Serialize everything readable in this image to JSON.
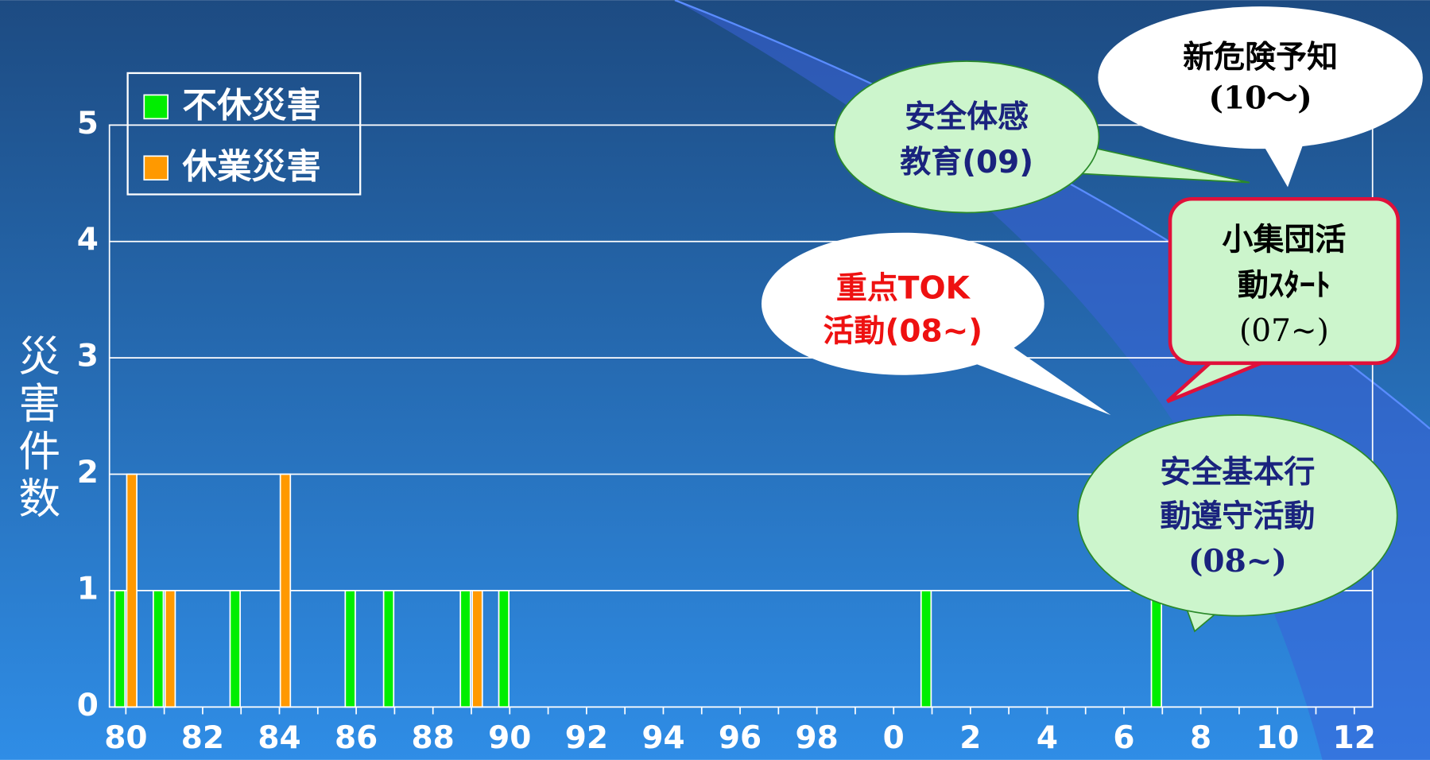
{
  "chart_data": {
    "type": "bar",
    "y_label": "災害件数",
    "categories": [
      "80",
      null,
      "82",
      null,
      "84",
      null,
      "86",
      null,
      "88",
      null,
      "90",
      null,
      "92",
      null,
      "94",
      null,
      "96",
      null,
      "98",
      null,
      "0",
      null,
      "2",
      null,
      "4",
      null,
      "6",
      null,
      "8",
      null,
      "10",
      null,
      "12"
    ],
    "series": [
      {
        "name": "不休災害",
        "color": "#00ee00",
        "values": [
          1,
          1,
          0,
          1,
          0,
          0,
          1,
          1,
          0,
          1,
          1,
          0,
          0,
          0,
          0,
          0,
          0,
          0,
          0,
          0,
          0,
          1,
          0,
          0,
          0,
          0,
          0,
          1,
          0,
          0,
          0,
          0,
          0
        ]
      },
      {
        "name": "休業災害",
        "color": "#ff9900",
        "values": [
          2,
          1,
          0,
          0,
          2,
          0,
          0,
          0,
          0,
          1,
          0,
          0,
          0,
          0,
          0,
          0,
          0,
          0,
          0,
          0,
          0,
          0,
          0,
          0,
          0,
          0,
          0,
          0,
          0,
          0,
          0,
          0,
          0
        ]
      }
    ],
    "ylim": [
      0,
      5
    ],
    "yticks": [
      0,
      1,
      2,
      3,
      4,
      5
    ],
    "grid": true,
    "legend": "upper left",
    "annotations": [
      [
        "新危険予知",
        "(10〜)"
      ],
      [
        "安全体感",
        "教育(09)"
      ],
      [
        "小集団活",
        "動ｽﾀｰﾄ",
        "(07~)"
      ],
      [
        "重点TOK",
        "活動(08~)"
      ],
      [
        "安全基本行",
        "動遵守活動",
        "(08~)"
      ]
    ]
  }
}
